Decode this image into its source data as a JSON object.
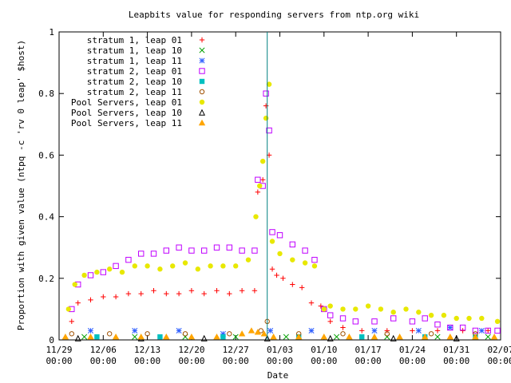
{
  "chart_data": {
    "type": "scatter",
    "title": "Leapbits value for responding servers from ntp.org wiki",
    "xlabel": "Date",
    "ylabel": "Proportion with given value (ntpq -c 'rv 0 leap' $host)",
    "x_unit": "days since 11/29 00:00",
    "xlim": [
      0,
      70
    ],
    "ylim": [
      0,
      1
    ],
    "x_ticks": [
      {
        "value": 0,
        "line1": "11/29",
        "line2": "00:00"
      },
      {
        "value": 7,
        "line1": "12/06",
        "line2": "00:00"
      },
      {
        "value": 14,
        "line1": "12/13",
        "line2": "00:00"
      },
      {
        "value": 21,
        "line1": "12/20",
        "line2": "00:00"
      },
      {
        "value": 28,
        "line1": "12/27",
        "line2": "00:00"
      },
      {
        "value": 35,
        "line1": "01/03",
        "line2": "00:00"
      },
      {
        "value": 42,
        "line1": "01/10",
        "line2": "00:00"
      },
      {
        "value": 49,
        "line1": "01/17",
        "line2": "00:00"
      },
      {
        "value": 56,
        "line1": "01/24",
        "line2": "00:00"
      },
      {
        "value": 63,
        "line1": "01/31",
        "line2": "00:00"
      },
      {
        "value": 70,
        "line1": "02/07",
        "line2": "00:00"
      }
    ],
    "y_ticks": [
      {
        "value": 0,
        "label": "0"
      },
      {
        "value": 0.2,
        "label": "0.2"
      },
      {
        "value": 0.4,
        "label": "0.4"
      },
      {
        "value": 0.6,
        "label": "0.6"
      },
      {
        "value": 0.8,
        "label": "0.8"
      },
      {
        "value": 1,
        "label": "1"
      }
    ],
    "vertical_marker_x": 33,
    "legend_position": "top-left",
    "series": [
      {
        "name": "stratum 1, leap 01",
        "color": "#ff0000",
        "marker": "plus",
        "points": [
          [
            2,
            0.06
          ],
          [
            3,
            0.12
          ],
          [
            5,
            0.13
          ],
          [
            7,
            0.14
          ],
          [
            9,
            0.14
          ],
          [
            11,
            0.15
          ],
          [
            13,
            0.15
          ],
          [
            15,
            0.16
          ],
          [
            17,
            0.15
          ],
          [
            19,
            0.15
          ],
          [
            21,
            0.16
          ],
          [
            23,
            0.15
          ],
          [
            25,
            0.16
          ],
          [
            27,
            0.15
          ],
          [
            29,
            0.16
          ],
          [
            31,
            0.16
          ],
          [
            31.5,
            0.48
          ],
          [
            32.3,
            0.52
          ],
          [
            32.8,
            0.76
          ],
          [
            33.3,
            0.6
          ],
          [
            33.8,
            0.23
          ],
          [
            34.5,
            0.21
          ],
          [
            35.5,
            0.2
          ],
          [
            37,
            0.18
          ],
          [
            38.5,
            0.17
          ],
          [
            40,
            0.12
          ],
          [
            41.5,
            0.11
          ],
          [
            43,
            0.06
          ],
          [
            45,
            0.04
          ],
          [
            48,
            0.03
          ],
          [
            52,
            0.03
          ],
          [
            56,
            0.03
          ],
          [
            60,
            0.03
          ],
          [
            64,
            0.03
          ],
          [
            68,
            0.03
          ]
        ]
      },
      {
        "name": "stratum 1, leap 10",
        "color": "#00a000",
        "marker": "cross",
        "points": [
          [
            4,
            0.01
          ],
          [
            12,
            0.01
          ],
          [
            20,
            0.01
          ],
          [
            28,
            0.01
          ],
          [
            36,
            0.01
          ],
          [
            44,
            0.01
          ],
          [
            52,
            0.01
          ],
          [
            60,
            0.01
          ],
          [
            68,
            0.01
          ]
        ]
      },
      {
        "name": "stratum 1, leap 11",
        "color": "#3060ff",
        "marker": "star",
        "points": [
          [
            5,
            0.03
          ],
          [
            12,
            0.03
          ],
          [
            19,
            0.03
          ],
          [
            26,
            0.02
          ],
          [
            33.5,
            0.03
          ],
          [
            40,
            0.03
          ],
          [
            50,
            0.03
          ],
          [
            57,
            0.03
          ],
          [
            62,
            0.04
          ],
          [
            67,
            0.03
          ]
        ]
      },
      {
        "name": "stratum 2, leap 01",
        "color": "#c000ff",
        "marker": "square",
        "points": [
          [
            2,
            0.1
          ],
          [
            3,
            0.18
          ],
          [
            5,
            0.21
          ],
          [
            7,
            0.22
          ],
          [
            9,
            0.24
          ],
          [
            11,
            0.26
          ],
          [
            13,
            0.28
          ],
          [
            15,
            0.28
          ],
          [
            17,
            0.29
          ],
          [
            19,
            0.3
          ],
          [
            21,
            0.29
          ],
          [
            23,
            0.29
          ],
          [
            25,
            0.3
          ],
          [
            27,
            0.3
          ],
          [
            29,
            0.29
          ],
          [
            31,
            0.29
          ],
          [
            31.5,
            0.52
          ],
          [
            32.3,
            0.5
          ],
          [
            32.8,
            0.8
          ],
          [
            33.3,
            0.68
          ],
          [
            33.8,
            0.35
          ],
          [
            35,
            0.34
          ],
          [
            37,
            0.31
          ],
          [
            39,
            0.29
          ],
          [
            40.5,
            0.26
          ],
          [
            42,
            0.1
          ],
          [
            43,
            0.08
          ],
          [
            45,
            0.07
          ],
          [
            47,
            0.06
          ],
          [
            50,
            0.06
          ],
          [
            53,
            0.07
          ],
          [
            56,
            0.06
          ],
          [
            58,
            0.07
          ],
          [
            60,
            0.05
          ],
          [
            62,
            0.04
          ],
          [
            64,
            0.04
          ],
          [
            66,
            0.03
          ],
          [
            68,
            0.03
          ],
          [
            69.5,
            0.03
          ]
        ]
      },
      {
        "name": "stratum 2, leap 10",
        "color": "#00c0c0",
        "marker": "filled-square",
        "points": [
          [
            6,
            0.01
          ],
          [
            16,
            0.01
          ],
          [
            26,
            0.01
          ],
          [
            38,
            0.01
          ],
          [
            48,
            0.01
          ],
          [
            58,
            0.01
          ],
          [
            66,
            0.01
          ]
        ]
      },
      {
        "name": "stratum 2, leap 11",
        "color": "#a05000",
        "marker": "circle",
        "points": [
          [
            2,
            0.02
          ],
          [
            8,
            0.02
          ],
          [
            14,
            0.02
          ],
          [
            20,
            0.02
          ],
          [
            27,
            0.02
          ],
          [
            32,
            0.03
          ],
          [
            33,
            0.06
          ],
          [
            38,
            0.02
          ],
          [
            45,
            0.02
          ],
          [
            52,
            0.02
          ],
          [
            59,
            0.02
          ],
          [
            66,
            0.02
          ]
        ]
      },
      {
        "name": "Pool Servers, leap 01",
        "color": "#e8e800",
        "marker": "filled-circle",
        "points": [
          [
            1.5,
            0.1
          ],
          [
            2.5,
            0.18
          ],
          [
            4,
            0.21
          ],
          [
            6,
            0.22
          ],
          [
            8,
            0.23
          ],
          [
            10,
            0.22
          ],
          [
            12,
            0.24
          ],
          [
            14,
            0.24
          ],
          [
            16,
            0.23
          ],
          [
            18,
            0.24
          ],
          [
            20,
            0.25
          ],
          [
            22,
            0.23
          ],
          [
            24,
            0.24
          ],
          [
            26,
            0.24
          ],
          [
            28,
            0.24
          ],
          [
            30,
            0.26
          ],
          [
            31.2,
            0.4
          ],
          [
            31.8,
            0.5
          ],
          [
            32.3,
            0.58
          ],
          [
            32.8,
            0.72
          ],
          [
            33.3,
            0.83
          ],
          [
            33.8,
            0.32
          ],
          [
            35,
            0.28
          ],
          [
            37,
            0.26
          ],
          [
            39,
            0.25
          ],
          [
            40.5,
            0.24
          ],
          [
            42,
            0.1
          ],
          [
            43,
            0.11
          ],
          [
            45,
            0.1
          ],
          [
            47,
            0.1
          ],
          [
            49,
            0.11
          ],
          [
            51,
            0.1
          ],
          [
            53,
            0.09
          ],
          [
            55,
            0.1
          ],
          [
            57,
            0.09
          ],
          [
            59,
            0.08
          ],
          [
            61,
            0.08
          ],
          [
            63,
            0.07
          ],
          [
            65,
            0.07
          ],
          [
            67,
            0.07
          ],
          [
            69.5,
            0.06
          ]
        ]
      },
      {
        "name": "Pool Servers, leap 10",
        "color": "#000000",
        "marker": "triangle",
        "points": [
          [
            3,
            0.005
          ],
          [
            13,
            0.005
          ],
          [
            23,
            0.005
          ],
          [
            33,
            0.005
          ],
          [
            43,
            0.005
          ],
          [
            53,
            0.005
          ],
          [
            63,
            0.005
          ]
        ]
      },
      {
        "name": "Pool Servers, leap 11",
        "color": "#ffa500",
        "marker": "filled-triangle",
        "points": [
          [
            1,
            0.01
          ],
          [
            5,
            0.01
          ],
          [
            9,
            0.01
          ],
          [
            13,
            0.01
          ],
          [
            17,
            0.01
          ],
          [
            21,
            0.01
          ],
          [
            25,
            0.01
          ],
          [
            29,
            0.02
          ],
          [
            30.5,
            0.03
          ],
          [
            31.5,
            0.025
          ],
          [
            32.5,
            0.02
          ],
          [
            34,
            0.01
          ],
          [
            38,
            0.01
          ],
          [
            42,
            0.01
          ],
          [
            46,
            0.01
          ],
          [
            50,
            0.01
          ],
          [
            54,
            0.01
          ],
          [
            58,
            0.01
          ],
          [
            62,
            0.01
          ],
          [
            66,
            0.01
          ],
          [
            69,
            0.01
          ]
        ]
      }
    ]
  }
}
